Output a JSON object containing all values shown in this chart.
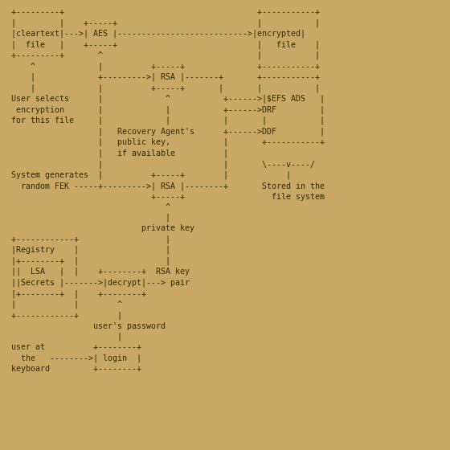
{
  "background_color": "#C8A864",
  "text_color": "#2D2D00",
  "font_size": 7.2,
  "diagram": [
    " +---------+                                        +-----------+",
    " |         |    +-----+                             |           |",
    " |cleartext|--->| AES |--------------------------->|encrypted|",
    " |  file   |    +-----+                             |   file    |",
    " +---------+       ^                                |           |",
    "     ^             |          +-----+               +-----------+",
    "     |             +--------->| RSA |-------+       +-----------+",
    "     |             |          +-----+       |       |           |",
    " User selects      |             ^           +------>|$EFS ADS   |",
    "  encryption       |             |           +------>DRF         |",
    " for this file     |             |           |       |           |",
    "                   |   Recovery Agent's      +------>DDF         |",
    "                   |   public key,           |       +-----------+",
    "                   |   if available          |",
    "                   |                         |       \\----v----/",
    " System generates  |          +-----+        |            |",
    "   random FEK -----+--------->| RSA |--------+       Stored in the",
    "                              +-----+                  file system",
    "                                 ^",
    "                                 |",
    "                            private key",
    " +------------+                  |",
    " |Registry    |                  |",
    " |+--------+  |                  |",
    " ||  LSA   |  |    +--------+  RSA key",
    " ||Secrets |------->|decrypt|---> pair",
    " |+--------+  |    +--------+",
    " |            |        ^",
    " +------------+        |",
    "                  user's password",
    "                       |",
    " user at          +--------+",
    "   the   -------->| login  |",
    " keyboard         +--------+"
  ]
}
